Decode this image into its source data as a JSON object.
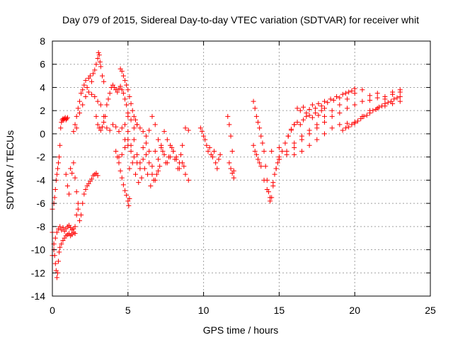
{
  "chart_data": {
    "type": "scatter",
    "title": "Day 079 of 2015, Sidereal Day-to-day VTEC variation (SDTVAR) for receiver whit",
    "xlabel": "GPS time / hours",
    "ylabel": "SDTVAR / TECUs",
    "xlim": [
      0,
      25
    ],
    "ylim": [
      -14,
      8
    ],
    "xticks": [
      "0",
      "5",
      "10",
      "15",
      "20",
      "25"
    ],
    "yticks": [
      "-14",
      "-12",
      "-10",
      "-8",
      "-6",
      "-4",
      "-2",
      "0",
      "2",
      "4",
      "6",
      "8"
    ],
    "grid": true,
    "legend": "none",
    "marker": "+",
    "color": "#ff0000",
    "series": [
      {
        "x": [
          0.0,
          0.1,
          0.15,
          0.2,
          0.25,
          0.3,
          0.35,
          0.4,
          0.45,
          0.5,
          0.55,
          0.6,
          0.65,
          0.7,
          0.75,
          0.8,
          0.85,
          0.9,
          0.95,
          1.0
        ],
        "y": [
          -6.5,
          -6.0,
          -5.5,
          -4.8,
          -4.0,
          -3.5,
          -3.0,
          -2.5,
          -2.0,
          -1.0,
          0.5,
          1.0,
          1.2,
          1.3,
          1.2,
          1.3,
          1.4,
          1.2,
          1.3,
          1.4
        ]
      },
      {
        "x": [
          0.0,
          0.1,
          0.15,
          0.2,
          0.25,
          0.3,
          0.35,
          0.4,
          0.45,
          0.5,
          0.6,
          0.7,
          0.8,
          0.9,
          1.0,
          1.1,
          1.2,
          1.3,
          1.4,
          1.5
        ],
        "y": [
          -8.5,
          -9.5,
          -10.5,
          -11.2,
          -11.8,
          -12.4,
          -12.0,
          -11.0,
          -10.2,
          -9.8,
          -9.5,
          -9.2,
          -9.0,
          -8.8,
          -8.7,
          -8.6,
          -8.8,
          -8.7,
          -8.5,
          -8.6
        ]
      },
      {
        "x": [
          0.0,
          0.1,
          0.2,
          0.3,
          0.4,
          0.5,
          0.6,
          0.7,
          0.8,
          0.9,
          1.0,
          1.1,
          1.2,
          1.3,
          1.4,
          1.5,
          1.6,
          1.7
        ],
        "y": [
          -10.5,
          -10.0,
          -9.0,
          -8.5,
          -8.2,
          -8.0,
          -8.3,
          -8.1,
          -8.4,
          -8.2,
          -8.0,
          -7.9,
          -8.1,
          -8.3,
          -8.2,
          -8.0,
          -7.0,
          -6.0
        ]
      },
      {
        "x": [
          0.9,
          1.0,
          1.1,
          1.2,
          1.3,
          1.4,
          1.5,
          1.6,
          1.7,
          1.8,
          1.9,
          2.0,
          2.1,
          2.2,
          2.3,
          2.4,
          2.5,
          2.6,
          2.7,
          2.8,
          2.9,
          3.0
        ],
        "y": [
          -3.5,
          -4.5,
          -5.2,
          -3.0,
          -3.4,
          -2.5,
          -3.8,
          -5.0,
          -6.5,
          -7.5,
          -7.0,
          -6.0,
          -5.2,
          -4.8,
          -4.5,
          -4.3,
          -4.1,
          -3.9,
          -3.6,
          -3.5,
          -3.4,
          -3.6
        ]
      },
      {
        "x": [
          1.4,
          1.5,
          1.6,
          1.7,
          1.8,
          1.9,
          2.0,
          2.1,
          2.2,
          2.3,
          2.4,
          2.5,
          2.6,
          2.7,
          2.8,
          2.9,
          3.0,
          3.05,
          3.1,
          3.15,
          3.2,
          3.3,
          3.4
        ],
        "y": [
          0.2,
          0.8,
          1.5,
          2.2,
          2.8,
          3.5,
          3.8,
          4.2,
          4.6,
          4.0,
          4.8,
          5.0,
          4.5,
          5.2,
          5.5,
          6.0,
          6.5,
          7.0,
          6.8,
          6.2,
          5.8,
          5.0,
          4.5
        ]
      },
      {
        "x": [
          1.6,
          1.8,
          2.0,
          2.2,
          2.4,
          2.6,
          2.8,
          3.0,
          3.2,
          3.4,
          3.6,
          3.8,
          4.0,
          4.2,
          4.4,
          4.6,
          4.8,
          5.0
        ],
        "y": [
          0.5,
          1.8,
          2.5,
          3.2,
          3.6,
          3.4,
          3.2,
          2.8,
          2.5,
          1.5,
          0.5,
          0.3,
          0.8,
          0.6,
          0.2,
          0.5,
          0.8,
          0.2
        ]
      },
      {
        "x": [
          2.9,
          3.0,
          3.1,
          3.2,
          3.3,
          3.4,
          3.5,
          3.6,
          3.7,
          3.8,
          3.9,
          4.0,
          4.1,
          4.2,
          4.3,
          4.4,
          4.5,
          4.6,
          4.7,
          4.8,
          4.9,
          5.0
        ],
        "y": [
          1.5,
          0.8,
          0.5,
          0.3,
          0.6,
          1.0,
          1.5,
          2.5,
          3.0,
          3.5,
          4.0,
          4.2,
          4.0,
          3.8,
          3.6,
          3.9,
          4.1,
          3.8,
          3.5,
          3.0,
          2.5,
          1.8
        ]
      },
      {
        "x": [
          4.5,
          4.6,
          4.7,
          4.8,
          4.9,
          5.0,
          5.1,
          5.2,
          5.3,
          5.4,
          5.5,
          5.6
        ],
        "y": [
          5.6,
          5.4,
          5.0,
          4.6,
          4.2,
          3.8,
          3.2,
          2.6,
          2.0,
          1.5,
          1.2,
          0.8
        ]
      },
      {
        "x": [
          4.3,
          4.4,
          4.5,
          4.6,
          4.7,
          4.8,
          4.9,
          5.0,
          5.05,
          5.1
        ],
        "y": [
          -2.0,
          -2.5,
          -3.2,
          -3.8,
          -4.4,
          -4.9,
          -5.3,
          -5.8,
          -6.2,
          -5.6
        ]
      },
      {
        "x": [
          4.2,
          4.4,
          4.6,
          4.8,
          5.0,
          5.2,
          5.4,
          5.6,
          5.8,
          6.0,
          6.2,
          6.4,
          6.6,
          6.8,
          7.0
        ],
        "y": [
          -1.5,
          -2.0,
          -1.8,
          -1.2,
          -0.5,
          -1.0,
          -2.0,
          -2.5,
          -3.0,
          -2.2,
          -1.8,
          -2.5,
          -3.5,
          -4.0,
          -3.2
        ]
      },
      {
        "x": [
          4.8,
          5.0,
          5.2,
          5.4,
          5.6,
          5.8,
          6.0,
          6.2,
          6.4,
          6.6,
          6.8,
          7.0,
          7.2,
          7.4,
          7.6,
          7.8,
          8.0,
          8.2,
          8.4,
          8.6,
          8.8,
          9.0
        ],
        "y": [
          -0.5,
          -1.0,
          -1.5,
          -0.5,
          -1.8,
          -2.5,
          -1.2,
          -0.8,
          -1.5,
          -2.8,
          -1.5,
          -2.2,
          -1.0,
          -1.8,
          -2.5,
          -2.0,
          -1.5,
          -2.2,
          -3.0,
          -2.5,
          -3.5,
          -4.0
        ]
      },
      {
        "x": [
          5.0,
          5.2,
          5.4,
          5.6,
          5.8,
          6.0,
          6.2,
          6.4,
          6.6,
          6.8,
          7.0,
          7.2,
          7.4,
          7.6,
          7.8,
          8.0,
          8.2,
          8.4,
          8.6,
          8.8,
          9.0
        ],
        "y": [
          1.5,
          1.2,
          0.5,
          0.8,
          0.5,
          0.2,
          -0.2,
          0.3,
          1.5,
          0.8,
          -0.5,
          -1.2,
          0.2,
          -0.5,
          -1.0,
          -1.5,
          -2.0,
          -2.5,
          -1.0,
          0.5,
          0.3
        ]
      },
      {
        "x": [
          5.1,
          5.3,
          5.5,
          5.7,
          5.9,
          6.1,
          6.3,
          6.5,
          6.7,
          6.9,
          7.1,
          7.3,
          7.5,
          7.7,
          7.9,
          8.1,
          8.3,
          8.5,
          8.7
        ],
        "y": [
          -3.0,
          -2.5,
          -3.5,
          -4.2,
          -3.8,
          -3.0,
          -3.5,
          -4.5,
          -4.0,
          -3.5,
          -2.8,
          -1.5,
          -2.5,
          -2.0,
          -1.2,
          -2.2,
          -3.0,
          -1.8,
          -2.8
        ]
      },
      {
        "x": [
          9.8,
          9.9,
          10.0,
          10.1,
          10.2,
          10.3,
          10.4,
          10.5,
          10.6,
          10.7,
          10.8,
          10.9,
          11.0,
          11.1
        ],
        "y": [
          0.5,
          0.2,
          -0.2,
          -0.5,
          -1.0,
          -1.5,
          -1.2,
          -1.8,
          -2.0,
          -1.5,
          -2.5,
          -3.0,
          -2.2,
          -1.8
        ]
      },
      {
        "x": [
          11.6,
          11.7,
          11.8,
          11.9,
          12.0
        ],
        "y": [
          1.5,
          0.8,
          -0.2,
          -1.5,
          -3.2
        ]
      },
      {
        "x": [
          11.7,
          11.8,
          11.9,
          12.0
        ],
        "y": [
          -2.5,
          -3.0,
          -3.4,
          -3.8
        ]
      },
      {
        "x": [
          13.3,
          13.4,
          13.5,
          13.6,
          13.7,
          13.8,
          13.9,
          14.0,
          14.1,
          14.2,
          14.3,
          14.4,
          14.5,
          14.6,
          14.7,
          14.8,
          14.9,
          15.0
        ],
        "y": [
          2.8,
          2.2,
          1.5,
          1.0,
          0.5,
          -0.2,
          -0.8,
          -1.5,
          -2.8,
          -4.0,
          -5.0,
          -5.8,
          -5.5,
          -4.5,
          -3.5,
          -3.0,
          -2.5,
          -2.0
        ]
      },
      {
        "x": [
          13.3,
          13.4,
          13.5,
          13.6,
          13.7,
          13.8
        ],
        "y": [
          -1.0,
          -1.5,
          -1.8,
          -2.2,
          -2.5,
          -2.8
        ]
      },
      {
        "x": [
          14.0,
          14.2,
          14.4,
          14.6,
          14.8,
          15.0,
          15.2,
          15.4,
          15.6,
          15.8,
          16.0
        ],
        "y": [
          -4.0,
          -4.8,
          -5.5,
          -4.2,
          -3.0,
          -2.2,
          -1.5,
          -0.8,
          -0.2,
          0.3,
          0.8
        ]
      },
      {
        "x": [
          14.5,
          15.0,
          15.5,
          16.0,
          16.5,
          17.0,
          17.5,
          18.0,
          18.5,
          19.0,
          19.5,
          20.0,
          20.5,
          21.0,
          21.5,
          22.0,
          22.5,
          23.0
        ],
        "y": [
          -1.5,
          -1.2,
          -1.5,
          -0.8,
          -0.2,
          0.3,
          0.8,
          1.5,
          2.0,
          2.5,
          3.0,
          3.5,
          3.8,
          3.3,
          3.5,
          3.2,
          3.6,
          3.8
        ]
      },
      {
        "x": [
          15.0,
          15.5,
          16.0,
          16.5,
          17.0,
          17.5,
          18.0,
          18.5,
          19.0,
          19.5,
          20.0,
          20.5,
          21.0,
          21.5,
          22.0,
          22.5,
          23.0
        ],
        "y": [
          -2.2,
          -1.8,
          -1.2,
          -0.5,
          0.0,
          0.5,
          1.0,
          1.5,
          1.8,
          2.2,
          2.5,
          2.8,
          2.9,
          3.1,
          3.0,
          3.4,
          3.6
        ]
      },
      {
        "x": [
          16.0,
          16.5,
          17.0,
          17.5,
          18.0,
          18.5,
          19.0,
          19.5,
          20.0,
          20.5,
          21.0,
          21.5,
          22.0,
          22.5,
          23.0
        ],
        "y": [
          -1.8,
          -1.5,
          -1.0,
          -0.5,
          0.0,
          0.5,
          0.8,
          0.9,
          1.0,
          1.5,
          2.0,
          2.2,
          2.4,
          2.6,
          2.8
        ]
      },
      {
        "x": [
          16.2,
          16.4,
          16.6,
          16.8,
          17.0,
          17.2,
          17.4,
          17.6,
          17.8,
          18.0,
          18.2,
          18.4,
          18.6,
          18.8,
          19.0,
          19.2,
          19.4,
          19.6,
          19.8,
          20.0
        ],
        "y": [
          2.2,
          2.0,
          2.3,
          1.8,
          2.1,
          2.5,
          2.2,
          2.6,
          2.4,
          2.8,
          2.7,
          3.0,
          2.9,
          3.2,
          3.1,
          3.4,
          3.5,
          3.6,
          3.7,
          3.9
        ]
      },
      {
        "x": [
          19.2,
          19.4,
          19.6,
          19.8,
          20.0,
          20.2,
          20.4,
          20.6,
          20.8,
          21.0,
          21.2,
          21.4,
          21.6,
          21.8,
          22.0,
          22.2,
          22.4,
          22.6,
          22.8,
          23.0
        ],
        "y": [
          0.3,
          0.5,
          0.6,
          0.8,
          0.9,
          1.1,
          1.3,
          1.5,
          1.6,
          1.8,
          2.0,
          2.1,
          2.3,
          2.4,
          2.6,
          2.7,
          2.8,
          3.0,
          3.1,
          3.2
        ]
      },
      {
        "x": [
          15.6,
          15.8,
          16.0,
          16.2,
          16.4,
          16.6,
          16.8,
          17.0,
          17.2,
          17.4,
          17.6,
          17.8,
          18.0
        ],
        "y": [
          -0.2,
          0.4,
          0.8,
          1.0,
          0.8,
          1.2,
          1.5,
          1.6,
          1.4,
          1.8,
          1.6,
          2.0,
          2.2
        ]
      }
    ]
  }
}
